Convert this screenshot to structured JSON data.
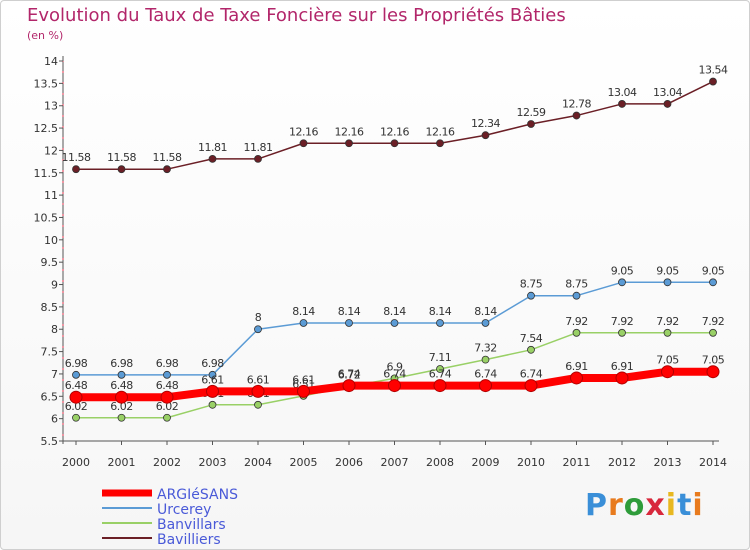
{
  "chart_data": {
    "type": "line",
    "title": "Evolution du Taux de Taxe Foncière sur les Propriétés Bâties",
    "unit": "(en %)",
    "ylim": [
      5.5,
      14
    ],
    "yticks": [
      "5.5",
      "6",
      "6.5",
      "7",
      "7.5",
      "8",
      "8.5",
      "9",
      "9.5",
      "10",
      "10.5",
      "11",
      "11.5",
      "12",
      "12.5",
      "13",
      "13.5",
      "14"
    ],
    "categories": [
      "2000",
      "2001",
      "2002",
      "2003",
      "2004",
      "2005",
      "2006",
      "2007",
      "2008",
      "2009",
      "2010",
      "2011",
      "2012",
      "2013",
      "2014"
    ],
    "series": [
      {
        "name": "Bavilliers",
        "color": "#6b1f26",
        "values": [
          11.58,
          11.58,
          11.58,
          11.81,
          11.81,
          12.16,
          12.16,
          12.16,
          12.16,
          12.34,
          12.59,
          12.78,
          13.04,
          13.04,
          13.54
        ],
        "labels": [
          "11.58",
          "11.58",
          "11.58",
          "11.81",
          "11.81",
          "12.16",
          "12.16",
          "12.16",
          "12.16",
          "12.34",
          "12.59",
          "12.78",
          "13.04",
          "13.04",
          "13.54"
        ]
      },
      {
        "name": "Urcerey",
        "color": "#5b9bd5",
        "values": [
          6.98,
          6.98,
          6.98,
          6.98,
          8,
          8.14,
          8.14,
          8.14,
          8.14,
          8.14,
          8.75,
          8.75,
          9.05,
          9.05,
          9.05
        ],
        "labels": [
          "6.98",
          "6.98",
          "6.98",
          "6.98",
          "8",
          "8.14",
          "8.14",
          "8.14",
          "8.14",
          "8.14",
          "8.75",
          "8.75",
          "9.05",
          "9.05",
          "9.05"
        ]
      },
      {
        "name": "Banvillars",
        "color": "#99d066",
        "values": [
          6.02,
          6.02,
          6.02,
          6.31,
          6.31,
          6.51,
          6.72,
          6.9,
          7.11,
          7.32,
          7.54,
          7.92,
          7.92,
          7.92,
          7.92
        ],
        "labels": [
          "6.02",
          "6.02",
          "6.02",
          "6.31",
          "6.31",
          "6.51",
          "6.72",
          "6.9",
          "7.11",
          "7.32",
          "7.54",
          "7.92",
          "7.92",
          "7.92",
          "7.92"
        ]
      },
      {
        "name": "ARGIéSANS",
        "color": "#ff0000",
        "values": [
          6.48,
          6.48,
          6.48,
          6.61,
          6.61,
          6.61,
          6.74,
          6.74,
          6.74,
          6.74,
          6.74,
          6.91,
          6.91,
          7.05,
          7.05
        ],
        "labels": [
          "6.48",
          "6.48",
          "6.48",
          "6.61",
          "6.61",
          "6.61",
          "6.74",
          "6.74",
          "6.74",
          "6.74",
          "6.74",
          "6.91",
          "6.91",
          "7.05",
          "7.05"
        ]
      }
    ],
    "legend": [
      "ARGIéSANS",
      "Urcerey",
      "Banvillars",
      "Bavilliers"
    ],
    "legend_placement": "bottom-left",
    "grid": false
  },
  "logo": {
    "letters": [
      "P",
      "r",
      "o",
      "x",
      "i",
      "t",
      "i"
    ],
    "colors": [
      "#3a8fd8",
      "#e87b1e",
      "#2e9c3a",
      "#d8283c",
      "#e8b820",
      "#3a8fd8",
      "#e87b1e"
    ]
  }
}
